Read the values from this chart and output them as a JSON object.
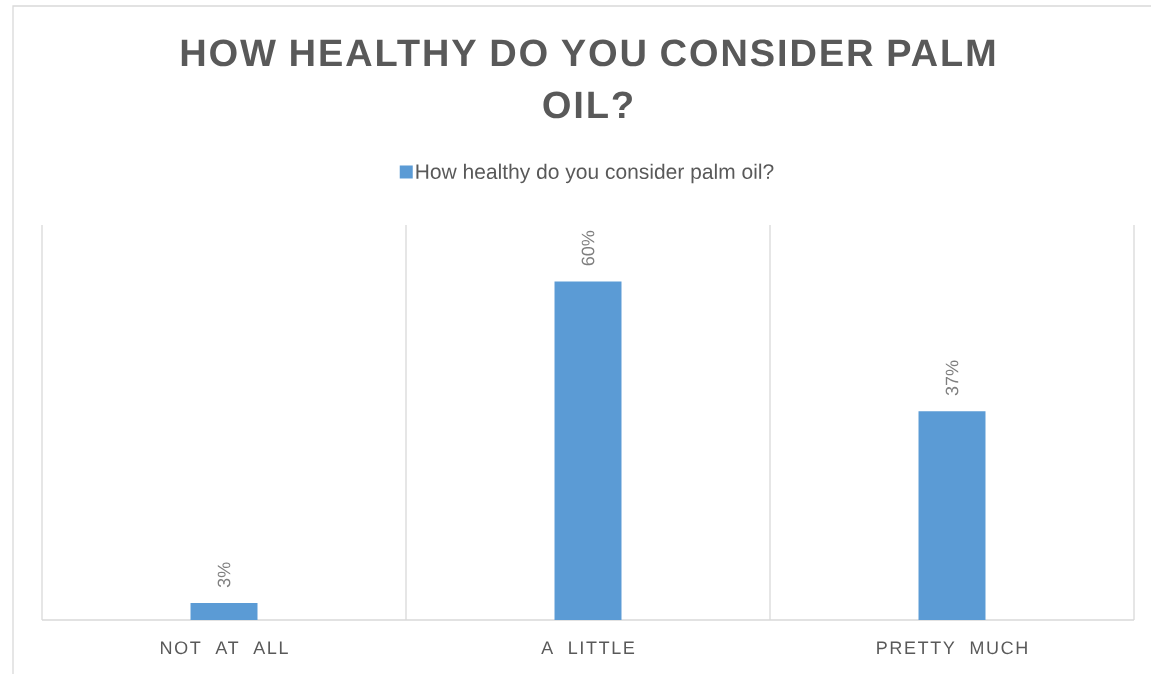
{
  "chart_data": {
    "type": "bar",
    "title": "HOW HEALTHY DO YOU CONSIDER PALM OIL?",
    "categories": [
      "NOT AT ALL",
      "A LITTLE",
      "PRETTY MUCH"
    ],
    "series": [
      {
        "name": "How healthy do you consider palm oil?",
        "color": "#5b9bd5",
        "values": [
          3,
          60,
          37
        ],
        "value_labels": [
          "3%",
          "60%",
          "37%"
        ]
      }
    ],
    "ylim": [
      0,
      70
    ],
    "legend": "top",
    "grid": "x",
    "tick_labels": "x"
  }
}
